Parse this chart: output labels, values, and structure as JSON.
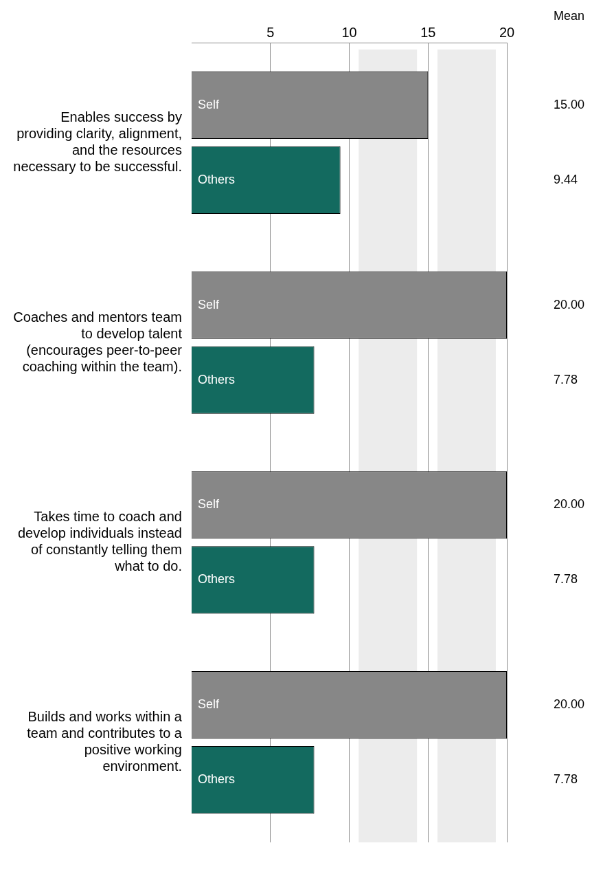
{
  "chart_data": {
    "type": "bar",
    "orientation": "horizontal",
    "categories": [
      "Enables success by providing clarity, alignment, and the resources necessary to be successful.",
      "Coaches and mentors team to develop talent (encourages peer-to-peer coaching within the team).",
      "Takes time to coach and develop individuals instead of constantly telling them what to do.",
      "Builds and works within a team and contributes to a positive working environment."
    ],
    "series": [
      {
        "name": "Self",
        "color": "#878787",
        "values": [
          15,
          20,
          20,
          20
        ],
        "value_labels": [
          "15.00",
          "20.00",
          "20.00",
          "20.00"
        ]
      },
      {
        "name": "Others",
        "color": "#136a5f",
        "values": [
          9.44,
          7.78,
          7.78,
          7.78
        ],
        "value_labels": [
          "9.44",
          "7.78",
          "7.78",
          "7.78"
        ]
      }
    ],
    "xlim": [
      0,
      20
    ],
    "xticks": [
      5,
      10,
      15,
      20
    ],
    "bands": [
      {
        "axis": "x",
        "from": 10.6,
        "to": 14.3,
        "color": "#ececec"
      },
      {
        "axis": "x",
        "from": 15.6,
        "to": 19.3,
        "color": "#ececec"
      }
    ],
    "annotations": [
      "Mean"
    ],
    "grid": "x",
    "legend": false
  }
}
